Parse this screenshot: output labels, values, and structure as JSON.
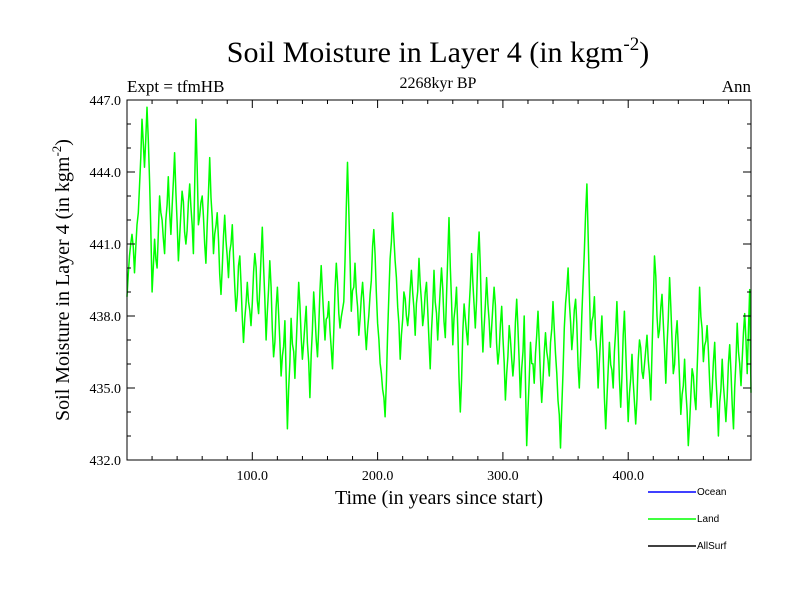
{
  "chart_data": {
    "type": "line",
    "title": "Soil Moisture in Layer 4 (in kgm",
    "title_sup": "-2",
    "title_close": ")",
    "subtitle": "2268kyr BP",
    "left_label": "Expt = tfmHB",
    "right_label": "Ann",
    "xlabel": "Time (in years since start)",
    "ylabel": "Soil Moisture in Layer 4 (in kgm",
    "ylabel_sup": "-2",
    "ylabel_close": ")",
    "xlim": [
      0,
      498
    ],
    "ylim": [
      432.0,
      447.0
    ],
    "x_ticks": [
      100.0,
      200.0,
      300.0,
      400.0
    ],
    "x_tick_labels": [
      "100.0",
      "200.0",
      "300.0",
      "400.0"
    ],
    "y_ticks": [
      432.0,
      435.0,
      438.0,
      441.0,
      444.0,
      447.0
    ],
    "y_tick_labels": [
      "432.0",
      "435.0",
      "438.0",
      "441.0",
      "444.0",
      "447.0"
    ],
    "legend": [
      {
        "name": "Ocean",
        "color": "#0000ff"
      },
      {
        "name": "Land",
        "color": "#00ff00"
      },
      {
        "name": "AllSurf",
        "color": "#000000"
      }
    ],
    "series": [
      {
        "name": "Land",
        "color": "#00ff00",
        "anchors": [
          [
            0,
            438.8
          ],
          [
            2,
            440.5
          ],
          [
            4,
            441.4
          ],
          [
            6,
            439.8
          ],
          [
            8,
            441.8
          ],
          [
            10,
            443.4
          ],
          [
            12,
            446.2
          ],
          [
            14,
            444.2
          ],
          [
            16,
            446.7
          ],
          [
            18,
            443.6
          ],
          [
            20,
            439.0
          ],
          [
            22,
            441.2
          ],
          [
            24,
            440.0
          ],
          [
            26,
            443.0
          ],
          [
            28,
            442.0
          ],
          [
            30,
            440.6
          ],
          [
            33,
            443.8
          ],
          [
            35,
            441.4
          ],
          [
            38,
            444.8
          ],
          [
            41,
            440.3
          ],
          [
            44,
            443.2
          ],
          [
            47,
            441.0
          ],
          [
            50,
            443.5
          ],
          [
            53,
            440.6
          ],
          [
            55,
            446.2
          ],
          [
            57,
            441.8
          ],
          [
            60,
            443.0
          ],
          [
            63,
            440.2
          ],
          [
            66,
            444.6
          ],
          [
            69,
            440.6
          ],
          [
            72,
            442.3
          ],
          [
            75,
            438.9
          ],
          [
            78,
            442.2
          ],
          [
            81,
            439.6
          ],
          [
            84,
            441.8
          ],
          [
            87,
            438.2
          ],
          [
            90,
            440.5
          ],
          [
            93,
            436.9
          ],
          [
            96,
            439.4
          ],
          [
            99,
            437.6
          ],
          [
            102,
            440.6
          ],
          [
            105,
            438.1
          ],
          [
            108,
            441.7
          ],
          [
            111,
            437.0
          ],
          [
            114,
            440.3
          ],
          [
            117,
            436.3
          ],
          [
            120,
            439.2
          ],
          [
            123,
            435.5
          ],
          [
            126,
            437.8
          ],
          [
            128,
            433.3
          ],
          [
            131,
            437.9
          ],
          [
            134,
            435.4
          ],
          [
            137,
            439.4
          ],
          [
            140,
            436.2
          ],
          [
            143,
            438.4
          ],
          [
            146,
            434.6
          ],
          [
            149,
            439.0
          ],
          [
            152,
            436.3
          ],
          [
            155,
            440.1
          ],
          [
            158,
            437.0
          ],
          [
            161,
            438.6
          ],
          [
            164,
            435.8
          ],
          [
            167,
            440.2
          ],
          [
            170,
            437.5
          ],
          [
            173,
            438.6
          ],
          [
            176,
            444.4
          ],
          [
            179,
            438.2
          ],
          [
            182,
            440.2
          ],
          [
            185,
            437.2
          ],
          [
            188,
            439.4
          ],
          [
            191,
            436.6
          ],
          [
            194,
            438.9
          ],
          [
            197,
            441.6
          ],
          [
            200,
            437.7
          ],
          [
            203,
            435.6
          ],
          [
            206,
            433.8
          ],
          [
            209,
            438.9
          ],
          [
            212,
            442.3
          ],
          [
            215,
            439.6
          ],
          [
            218,
            436.2
          ],
          [
            221,
            439.0
          ],
          [
            224,
            437.6
          ],
          [
            227,
            439.9
          ],
          [
            230,
            437.2
          ],
          [
            233,
            440.4
          ],
          [
            236,
            437.6
          ],
          [
            239,
            439.4
          ],
          [
            242,
            435.8
          ],
          [
            245,
            439.9
          ],
          [
            248,
            437.0
          ],
          [
            251,
            440.0
          ],
          [
            254,
            437.1
          ],
          [
            257,
            442.1
          ],
          [
            260,
            436.8
          ],
          [
            263,
            439.2
          ],
          [
            266,
            434.0
          ],
          [
            269,
            438.5
          ],
          [
            272,
            436.8
          ],
          [
            275,
            440.6
          ],
          [
            278,
            437.5
          ],
          [
            281,
            441.5
          ],
          [
            284,
            436.5
          ],
          [
            287,
            439.6
          ],
          [
            290,
            436.7
          ],
          [
            293,
            439.2
          ],
          [
            296,
            436.0
          ],
          [
            299,
            438.4
          ],
          [
            302,
            434.5
          ],
          [
            305,
            437.6
          ],
          [
            308,
            435.5
          ],
          [
            311,
            438.7
          ],
          [
            314,
            434.6
          ],
          [
            317,
            438.0
          ],
          [
            319,
            432.6
          ],
          [
            322,
            436.9
          ],
          [
            325,
            435.2
          ],
          [
            328,
            438.2
          ],
          [
            331,
            434.4
          ],
          [
            334,
            437.3
          ],
          [
            337,
            435.5
          ],
          [
            340,
            438.6
          ],
          [
            343,
            435.6
          ],
          [
            346,
            432.5
          ],
          [
            349,
            437.5
          ],
          [
            352,
            440.0
          ],
          [
            355,
            436.6
          ],
          [
            358,
            438.7
          ],
          [
            361,
            435.0
          ],
          [
            364,
            439.4
          ],
          [
            367,
            443.5
          ],
          [
            370,
            437.0
          ],
          [
            373,
            438.8
          ],
          [
            376,
            435.0
          ],
          [
            379,
            438.0
          ],
          [
            382,
            433.3
          ],
          [
            385,
            436.9
          ],
          [
            388,
            435.0
          ],
          [
            391,
            438.6
          ],
          [
            394,
            434.2
          ],
          [
            397,
            438.2
          ],
          [
            400,
            433.6
          ],
          [
            403,
            436.4
          ],
          [
            406,
            433.5
          ],
          [
            409,
            437.0
          ],
          [
            412,
            435.4
          ],
          [
            415,
            437.2
          ],
          [
            418,
            434.5
          ],
          [
            421,
            440.5
          ],
          [
            424,
            437.1
          ],
          [
            427,
            438.9
          ],
          [
            430,
            435.2
          ],
          [
            433,
            439.6
          ],
          [
            436,
            435.6
          ],
          [
            439,
            437.8
          ],
          [
            442,
            433.9
          ],
          [
            445,
            436.2
          ],
          [
            448,
            432.6
          ],
          [
            451,
            435.8
          ],
          [
            454,
            434.1
          ],
          [
            457,
            439.2
          ],
          [
            460,
            436.1
          ],
          [
            463,
            437.6
          ],
          [
            466,
            434.2
          ],
          [
            469,
            436.9
          ],
          [
            472,
            433.0
          ],
          [
            475,
            436.2
          ],
          [
            478,
            433.6
          ],
          [
            481,
            436.8
          ],
          [
            484,
            433.3
          ],
          [
            487,
            437.7
          ],
          [
            490,
            435.1
          ],
          [
            493,
            438.1
          ],
          [
            495,
            435.6
          ],
          [
            497,
            439.1
          ],
          [
            498,
            434.8
          ]
        ]
      }
    ]
  }
}
